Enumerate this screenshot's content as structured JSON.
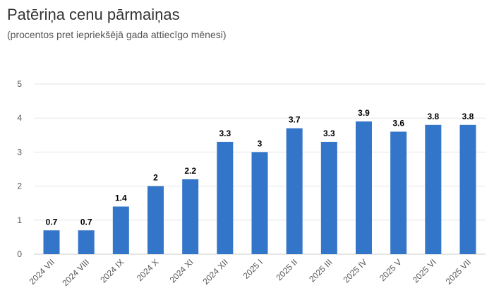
{
  "chart_data": {
    "type": "bar",
    "title": "Patēriņa cenu pārmaiņas",
    "subtitle": "(procentos pret iepriekšējā gada attiecīgo mēnesi)",
    "xlabel": "",
    "ylabel": "",
    "categories": [
      "2024 VII",
      "2024 VIII",
      "2024 IX",
      "2024 X",
      "2024 XI",
      "2024 XII",
      "2025 I",
      "2025 II",
      "2025 III",
      "2025 IV",
      "2025 V",
      "2025 VI",
      "2025 VII"
    ],
    "values": [
      0.7,
      0.7,
      1.4,
      2,
      2.2,
      3.3,
      3,
      3.7,
      3.3,
      3.9,
      3.6,
      3.8,
      3.8
    ],
    "data_labels": [
      "0.7",
      "0.7",
      "1.4",
      "2",
      "2.2",
      "3.3",
      "3",
      "3.7",
      "3.3",
      "3.9",
      "3.6",
      "3.8",
      "3.8"
    ],
    "ylim": [
      0,
      5
    ],
    "yticks": [
      "0",
      "1",
      "2",
      "3",
      "4",
      "5"
    ],
    "grid": true,
    "legend": "none",
    "bar_color": "#3375c8"
  }
}
